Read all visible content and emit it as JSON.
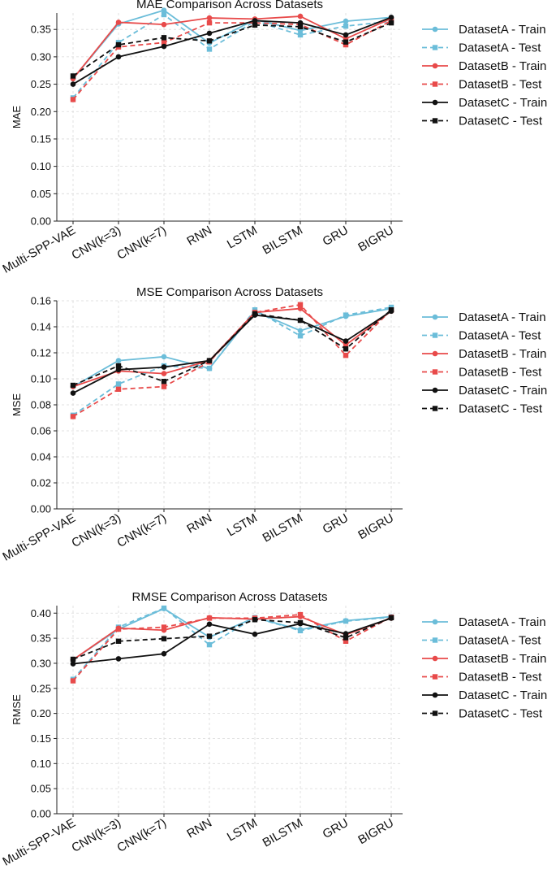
{
  "chart_data": [
    {
      "type": "line",
      "title": "MAE Comparison Across Datasets",
      "xlabel": "",
      "ylabel": "MAE",
      "ylim": [
        0.0,
        0.38
      ],
      "yticks": [
        "0.00",
        "0.05",
        "0.10",
        "0.15",
        "0.20",
        "0.25",
        "0.30",
        "0.35"
      ],
      "categories": [
        "Multi-SPP-VAE",
        "CNN(k=3)",
        "CNN(k=7)",
        "RNN",
        "LSTM",
        "BILSTM",
        "GRU",
        "BIGRU"
      ],
      "grid": true,
      "legend_position": "right",
      "series": [
        {
          "name": "DatasetA - Train",
          "color": "#6bbdd9",
          "style": "solid",
          "marker": "circle",
          "values": [
            0.26,
            0.36,
            0.385,
            0.325,
            0.368,
            0.348,
            0.365,
            0.372
          ]
        },
        {
          "name": "DatasetA - Test",
          "color": "#6bbdd9",
          "style": "dashed",
          "marker": "square",
          "values": [
            0.225,
            0.326,
            0.377,
            0.314,
            0.365,
            0.34,
            0.356,
            0.365
          ]
        },
        {
          "name": "DatasetB - Train",
          "color": "#e84a4a",
          "style": "solid",
          "marker": "circle",
          "values": [
            0.26,
            0.363,
            0.359,
            0.371,
            0.369,
            0.374,
            0.333,
            0.37
          ]
        },
        {
          "name": "DatasetB - Test",
          "color": "#e84a4a",
          "style": "dashed",
          "marker": "square",
          "values": [
            0.222,
            0.318,
            0.326,
            0.362,
            0.362,
            0.359,
            0.322,
            0.366
          ]
        },
        {
          "name": "DatasetC - Train",
          "color": "#111111",
          "style": "solid",
          "marker": "circle",
          "values": [
            0.25,
            0.3,
            0.319,
            0.343,
            0.366,
            0.362,
            0.34,
            0.372
          ]
        },
        {
          "name": "DatasetC - Test",
          "color": "#111111",
          "style": "dashed",
          "marker": "square",
          "values": [
            0.265,
            0.322,
            0.335,
            0.329,
            0.358,
            0.355,
            0.327,
            0.362
          ]
        }
      ]
    },
    {
      "type": "line",
      "title": "MSE Comparison Across Datasets",
      "xlabel": "",
      "ylabel": "MSE",
      "ylim": [
        0.0,
        0.16
      ],
      "yticks": [
        "0.00",
        "0.02",
        "0.04",
        "0.06",
        "0.08",
        "0.10",
        "0.12",
        "0.14",
        "0.16"
      ],
      "categories": [
        "Multi-SPP-VAE",
        "CNN(k=3)",
        "CNN(k=7)",
        "RNN",
        "LSTM",
        "BILSTM",
        "GRU",
        "BIGRU"
      ],
      "grid": true,
      "legend_position": "right",
      "series": [
        {
          "name": "DatasetA - Train",
          "color": "#6bbdd9",
          "style": "solid",
          "marker": "circle",
          "values": [
            0.094,
            0.114,
            0.117,
            0.108,
            0.152,
            0.137,
            0.148,
            0.154
          ]
        },
        {
          "name": "DatasetA - Test",
          "color": "#6bbdd9",
          "style": "dashed",
          "marker": "square",
          "values": [
            0.072,
            0.096,
            0.11,
            0.108,
            0.153,
            0.133,
            0.149,
            0.155
          ]
        },
        {
          "name": "DatasetB - Train",
          "color": "#e84a4a",
          "style": "solid",
          "marker": "circle",
          "values": [
            0.094,
            0.106,
            0.104,
            0.114,
            0.151,
            0.154,
            0.126,
            0.152
          ]
        },
        {
          "name": "DatasetB - Test",
          "color": "#e84a4a",
          "style": "dashed",
          "marker": "square",
          "values": [
            0.071,
            0.092,
            0.094,
            0.113,
            0.151,
            0.157,
            0.118,
            0.153
          ]
        },
        {
          "name": "DatasetC - Train",
          "color": "#111111",
          "style": "solid",
          "marker": "circle",
          "values": [
            0.089,
            0.107,
            0.109,
            0.114,
            0.149,
            0.145,
            0.129,
            0.152
          ]
        },
        {
          "name": "DatasetC - Test",
          "color": "#111111",
          "style": "dashed",
          "marker": "square",
          "values": [
            0.095,
            0.11,
            0.098,
            0.114,
            0.15,
            0.145,
            0.123,
            0.153
          ]
        }
      ]
    },
    {
      "type": "line",
      "title": "RMSE Comparison Across Datasets",
      "xlabel": "",
      "ylabel": "RMSE",
      "ylim": [
        0.0,
        0.415
      ],
      "yticks": [
        "0.00",
        "0.05",
        "0.10",
        "0.15",
        "0.20",
        "0.25",
        "0.30",
        "0.35",
        "0.40"
      ],
      "categories": [
        "Multi-SPP-VAE",
        "CNN(k=3)",
        "CNN(k=7)",
        "RNN",
        "LSTM",
        "BILSTM",
        "GRU",
        "BIGRU"
      ],
      "grid": true,
      "legend_position": "right",
      "series": [
        {
          "name": "DatasetA - Train",
          "color": "#6bbdd9",
          "style": "solid",
          "marker": "circle",
          "values": [
            0.307,
            0.368,
            0.409,
            0.352,
            0.391,
            0.367,
            0.385,
            0.393
          ]
        },
        {
          "name": "DatasetA - Test",
          "color": "#6bbdd9",
          "style": "dashed",
          "marker": "square",
          "values": [
            0.268,
            0.372,
            0.41,
            0.337,
            0.391,
            0.365,
            0.384,
            0.392
          ]
        },
        {
          "name": "DatasetB - Train",
          "color": "#e84a4a",
          "style": "solid",
          "marker": "circle",
          "values": [
            0.307,
            0.37,
            0.366,
            0.391,
            0.388,
            0.393,
            0.357,
            0.39
          ]
        },
        {
          "name": "DatasetB - Test",
          "color": "#e84a4a",
          "style": "dashed",
          "marker": "square",
          "values": [
            0.265,
            0.368,
            0.372,
            0.39,
            0.39,
            0.397,
            0.344,
            0.392
          ]
        },
        {
          "name": "DatasetC - Train",
          "color": "#111111",
          "style": "solid",
          "marker": "circle",
          "values": [
            0.299,
            0.309,
            0.319,
            0.378,
            0.358,
            0.379,
            0.359,
            0.39
          ]
        },
        {
          "name": "DatasetC - Test",
          "color": "#111111",
          "style": "dashed",
          "marker": "square",
          "values": [
            0.308,
            0.344,
            0.349,
            0.354,
            0.387,
            0.381,
            0.351,
            0.391
          ]
        }
      ]
    }
  ]
}
